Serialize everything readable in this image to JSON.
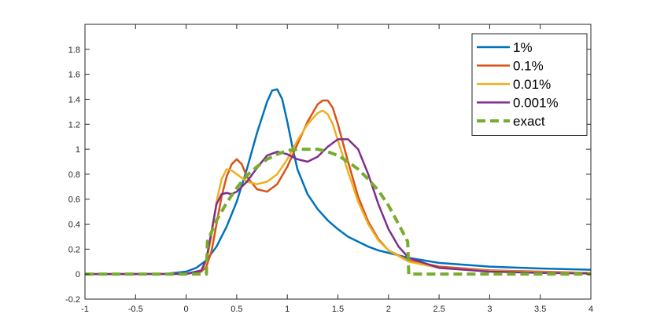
{
  "chart_data": {
    "type": "line",
    "xlim": [
      -1,
      4
    ],
    "ylim": [
      -0.2,
      2.0
    ],
    "xticks": [
      -1,
      -0.5,
      0,
      0.5,
      1,
      1.5,
      2,
      2.5,
      3,
      3.5,
      4
    ],
    "yticks": [
      -0.2,
      0,
      0.2,
      0.4,
      0.6,
      0.8,
      1,
      1.2,
      1.4,
      1.6,
      1.8
    ],
    "xtick_labels": [
      "-1",
      "-0.5",
      "0",
      "0.5",
      "1",
      "1.5",
      "2",
      "2.5",
      "3",
      "3.5",
      "4"
    ],
    "ytick_labels": [
      "-0.2",
      "0",
      "0.2",
      "0.4",
      "0.6",
      "0.8",
      "1",
      "1.2",
      "1.4",
      "1.6",
      "1.8"
    ],
    "grid": false,
    "legend_position": "top-right",
    "series": [
      {
        "name": "1%",
        "color": "#0072BD",
        "dash": "solid",
        "x": [
          -1,
          -0.5,
          -0.2,
          0,
          0.1,
          0.2,
          0.3,
          0.4,
          0.5,
          0.6,
          0.7,
          0.8,
          0.85,
          0.9,
          0.95,
          1.0,
          1.05,
          1.1,
          1.2,
          1.3,
          1.4,
          1.5,
          1.6,
          1.7,
          1.8,
          1.9,
          2.0,
          2.2,
          2.5,
          3.0,
          3.5,
          4.0
        ],
        "y": [
          0,
          0,
          0.003,
          0.02,
          0.05,
          0.11,
          0.22,
          0.38,
          0.58,
          0.84,
          1.13,
          1.38,
          1.47,
          1.48,
          1.4,
          1.22,
          1.02,
          0.84,
          0.64,
          0.52,
          0.43,
          0.36,
          0.3,
          0.26,
          0.22,
          0.19,
          0.17,
          0.13,
          0.09,
          0.06,
          0.045,
          0.035
        ]
      },
      {
        "name": "0.1%",
        "color": "#D95319",
        "dash": "solid",
        "x": [
          -1,
          0,
          0.15,
          0.2,
          0.25,
          0.3,
          0.35,
          0.4,
          0.45,
          0.5,
          0.55,
          0.6,
          0.7,
          0.8,
          0.9,
          1.0,
          1.1,
          1.2,
          1.3,
          1.35,
          1.4,
          1.45,
          1.5,
          1.6,
          1.7,
          1.8,
          1.9,
          2.0,
          2.2,
          2.5,
          3.0,
          3.5,
          4.0
        ],
        "y": [
          0,
          0.002,
          0.02,
          0.06,
          0.18,
          0.4,
          0.62,
          0.78,
          0.88,
          0.92,
          0.88,
          0.78,
          0.68,
          0.66,
          0.72,
          0.86,
          1.04,
          1.22,
          1.36,
          1.39,
          1.39,
          1.33,
          1.2,
          0.9,
          0.62,
          0.42,
          0.28,
          0.19,
          0.11,
          0.06,
          0.03,
          0.02,
          0.01
        ]
      },
      {
        "name": "0.01%",
        "color": "#EDB120",
        "dash": "solid",
        "x": [
          -1,
          0,
          0.15,
          0.2,
          0.25,
          0.3,
          0.35,
          0.4,
          0.45,
          0.5,
          0.55,
          0.6,
          0.7,
          0.8,
          0.9,
          1.0,
          1.1,
          1.2,
          1.3,
          1.35,
          1.4,
          1.45,
          1.5,
          1.6,
          1.7,
          1.8,
          1.9,
          2.0,
          2.2,
          2.5,
          3.0,
          3.5,
          4.0
        ],
        "y": [
          0,
          0.002,
          0.03,
          0.1,
          0.3,
          0.58,
          0.76,
          0.84,
          0.83,
          0.8,
          0.77,
          0.74,
          0.72,
          0.74,
          0.8,
          0.92,
          1.07,
          1.2,
          1.29,
          1.31,
          1.28,
          1.2,
          1.07,
          0.82,
          0.58,
          0.4,
          0.27,
          0.19,
          0.1,
          0.05,
          0.025,
          0.015,
          0.01
        ]
      },
      {
        "name": "0.001%",
        "color": "#7E2F8E",
        "dash": "solid",
        "x": [
          -1,
          0,
          0.15,
          0.2,
          0.25,
          0.3,
          0.35,
          0.4,
          0.45,
          0.5,
          0.6,
          0.7,
          0.8,
          0.9,
          1.0,
          1.1,
          1.2,
          1.3,
          1.4,
          1.5,
          1.6,
          1.7,
          1.8,
          1.9,
          2.0,
          2.1,
          2.2,
          2.5,
          3.0,
          3.5,
          4.0
        ],
        "y": [
          0,
          0.002,
          0.03,
          0.12,
          0.34,
          0.56,
          0.64,
          0.65,
          0.64,
          0.66,
          0.74,
          0.85,
          0.95,
          0.98,
          0.96,
          0.92,
          0.9,
          0.94,
          1.02,
          1.08,
          1.08,
          1.0,
          0.8,
          0.56,
          0.36,
          0.22,
          0.13,
          0.05,
          0.02,
          0.01,
          0.005
        ]
      },
      {
        "name": "exact",
        "color": "#77AC30",
        "dash": "dashed",
        "x": [
          -1,
          0.2,
          0.21,
          0.3,
          0.4,
          0.5,
          0.6,
          0.7,
          0.8,
          0.9,
          1.0,
          1.1,
          1.2,
          1.3,
          1.4,
          1.5,
          1.6,
          1.7,
          1.8,
          1.9,
          2.0,
          2.1,
          2.19,
          2.2,
          2.5,
          3.0,
          3.5,
          4.0
        ],
        "y": [
          0,
          0,
          0.26,
          0.43,
          0.57,
          0.69,
          0.79,
          0.86,
          0.92,
          0.96,
          0.99,
          1.0,
          1.0,
          1.0,
          0.98,
          0.95,
          0.9,
          0.84,
          0.76,
          0.67,
          0.55,
          0.4,
          0.26,
          0,
          0,
          0,
          0,
          0
        ]
      }
    ]
  }
}
